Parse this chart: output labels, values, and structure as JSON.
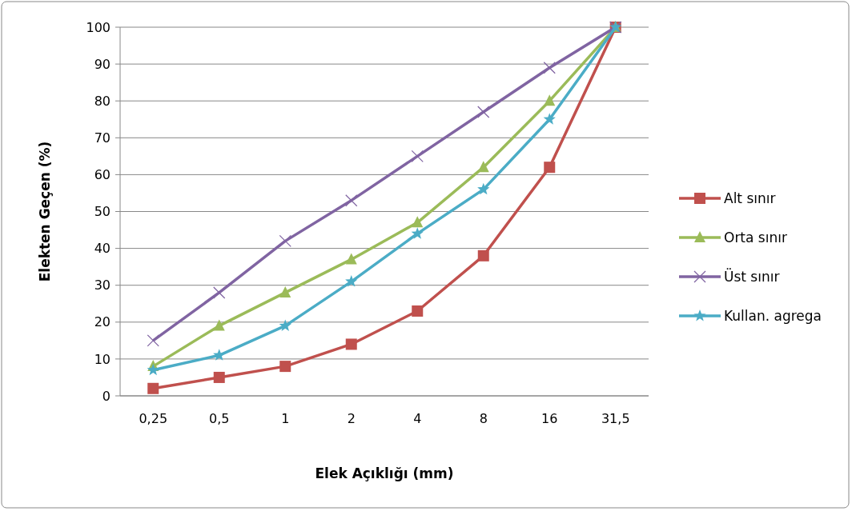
{
  "chart_data": {
    "type": "line",
    "xlabel": "Elek Açıklığı (mm)",
    "ylabel": "Elekten Geçen (%)",
    "categories": [
      "0,25",
      "0,5",
      "1",
      "2",
      "4",
      "8",
      "16",
      "31,5"
    ],
    "ylim": [
      0,
      100
    ],
    "yticks": [
      0,
      10,
      20,
      30,
      40,
      50,
      60,
      70,
      80,
      90,
      100
    ],
    "grid": "y",
    "legend": "right",
    "series": [
      {
        "name": "Alt sınır",
        "color": "#c0504d",
        "marker": "square",
        "values": [
          2,
          5,
          8,
          14,
          23,
          38,
          62,
          100
        ]
      },
      {
        "name": "Orta sınır",
        "color": "#9bbb59",
        "marker": "triangle",
        "values": [
          8,
          19,
          28,
          37,
          47,
          62,
          80,
          100
        ]
      },
      {
        "name": "Üst sınır",
        "color": "#8064a2",
        "marker": "cross",
        "values": [
          15,
          28,
          42,
          53,
          65,
          77,
          89,
          100
        ]
      },
      {
        "name": "Kullan. agrega",
        "color": "#4bacc6",
        "marker": "star",
        "values": [
          7,
          11,
          19,
          31,
          44,
          56,
          75,
          100
        ]
      }
    ]
  }
}
